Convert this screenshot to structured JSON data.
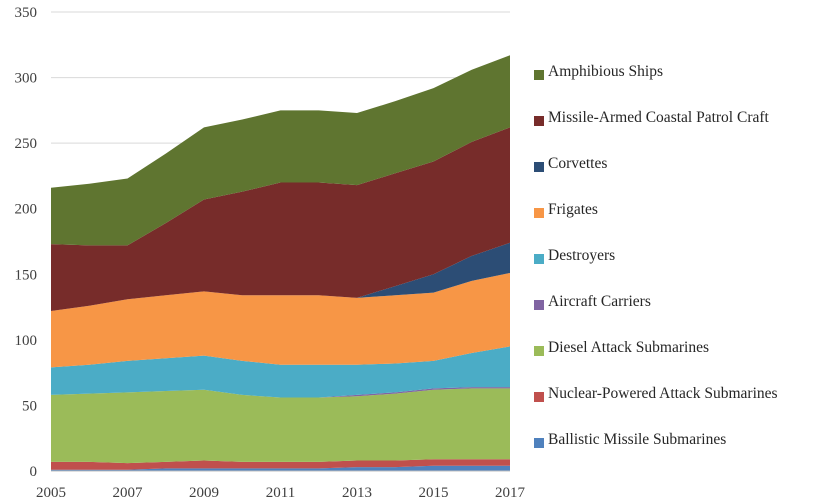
{
  "chart_data": {
    "type": "area",
    "stacked": true,
    "x": [
      2005,
      2006,
      2007,
      2008,
      2009,
      2010,
      2011,
      2012,
      2013,
      2014,
      2015,
      2016,
      2017
    ],
    "x_tick_labels": [
      "2005",
      "2007",
      "2009",
      "2011",
      "2013",
      "2015",
      "2017"
    ],
    "y_tick_labels": [
      "0",
      "50",
      "100",
      "150",
      "200",
      "250",
      "300",
      "350"
    ],
    "ylim": [
      0,
      350
    ],
    "grid": "horizontal",
    "legend_position": "right",
    "series": [
      {
        "name": "Ballistic Missile Submarines",
        "color": "#4f81bd",
        "values": [
          1,
          1,
          1,
          2,
          2,
          2,
          2,
          2,
          3,
          3,
          4,
          4,
          4
        ]
      },
      {
        "name": "Nuclear-Powered Attack Submarines",
        "color": "#c0504d",
        "values": [
          6,
          6,
          5,
          5,
          6,
          5,
          5,
          5,
          5,
          5,
          5,
          5,
          5
        ]
      },
      {
        "name": "Diesel Attack Submarines",
        "color": "#9bbb59",
        "values": [
          51,
          52,
          54,
          54,
          54,
          51,
          49,
          49,
          49,
          51,
          53,
          54,
          54
        ]
      },
      {
        "name": "Aircraft Carriers",
        "color": "#8064a2",
        "values": [
          0,
          0,
          0,
          0,
          0,
          0,
          0,
          0,
          1,
          1,
          1,
          1,
          1
        ]
      },
      {
        "name": "Destroyers",
        "color": "#4bacc6",
        "values": [
          21,
          22,
          24,
          25,
          26,
          26,
          25,
          25,
          23,
          22,
          21,
          26,
          31
        ]
      },
      {
        "name": "Frigates",
        "color": "#f79646",
        "values": [
          43,
          45,
          47,
          48,
          49,
          50,
          53,
          53,
          51,
          52,
          52,
          55,
          56
        ]
      },
      {
        "name": "Corvettes",
        "color": "#2c4d75",
        "values": [
          0,
          0,
          0,
          0,
          0,
          0,
          0,
          0,
          0,
          7,
          14,
          19,
          23
        ]
      },
      {
        "name": "Missile-Armed Coastal Patrol Craft",
        "color": "#772c2a",
        "values": [
          51,
          46,
          41,
          55,
          70,
          79,
          86,
          86,
          86,
          86,
          86,
          87,
          88
        ]
      },
      {
        "name": "Amphibious Ships",
        "color": "#5f7530",
        "values": [
          43,
          47,
          51,
          53,
          55,
          55,
          55,
          55,
          55,
          55,
          56,
          55,
          55
        ]
      }
    ]
  }
}
